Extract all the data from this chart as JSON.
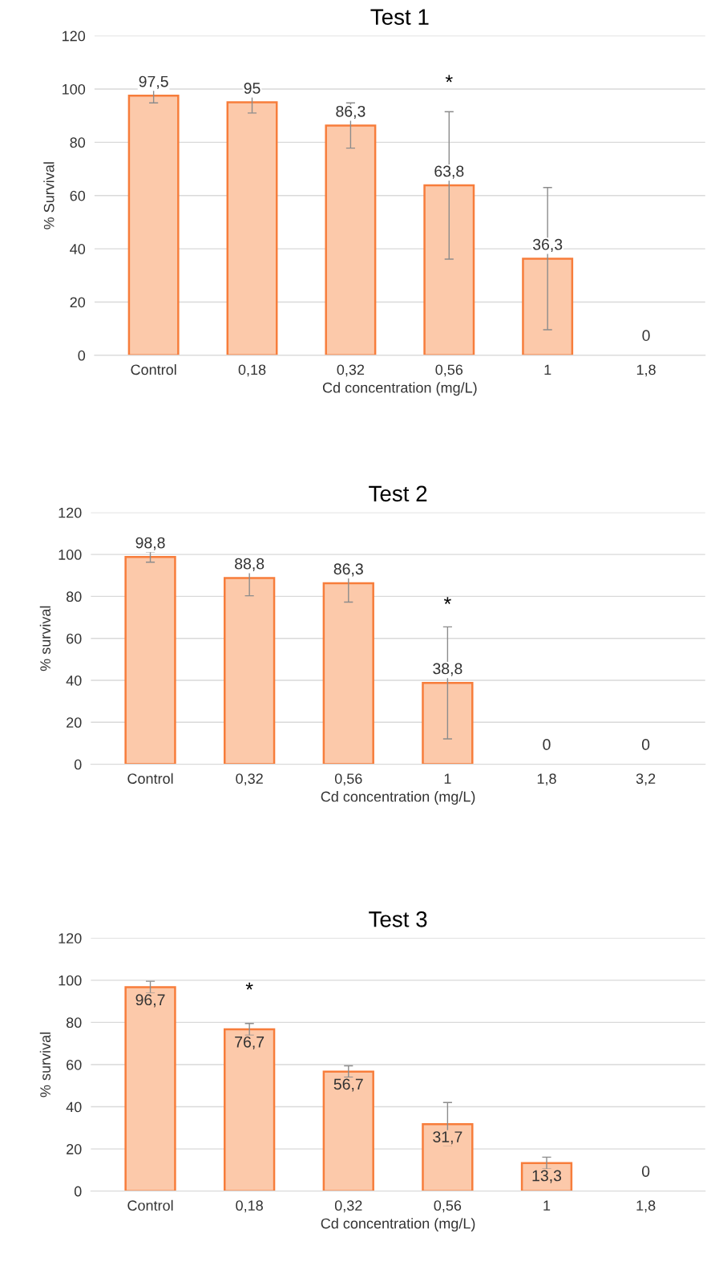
{
  "chart_data": [
    {
      "type": "bar",
      "title": "Test 1",
      "xlabel": "Cd concentration (mg/L)",
      "ylabel": "% Survival",
      "categories": [
        "Control",
        "0,18",
        "0,32",
        "0,56",
        "1",
        "1,8"
      ],
      "values": [
        97.5,
        95,
        86.3,
        63.8,
        36.3,
        0
      ],
      "errors": [
        2.7,
        4,
        8.5,
        27.7,
        26.7,
        null
      ],
      "value_labels": [
        "97,5",
        "95",
        "86,3",
        "63,8",
        "36,3",
        "0"
      ],
      "data_labels": true,
      "color": "#fcc9aa",
      "ylim": [
        0,
        120
      ],
      "yticks": [
        0,
        20,
        40,
        60,
        80,
        100,
        120
      ],
      "grid": "y",
      "annotations": [
        "*"
      ]
    },
    {
      "type": "bar",
      "title": "Test 2",
      "xlabel": "Cd concentration (mg/L)",
      "ylabel": "% survival",
      "categories": [
        "Control",
        "0,32",
        "0,56",
        "1",
        "1,8",
        "3,2"
      ],
      "values": [
        98.8,
        88.8,
        86.3,
        38.8,
        0,
        0
      ],
      "errors": [
        2.5,
        8.5,
        9,
        26.7,
        null,
        null
      ],
      "value_labels": [
        "98,8",
        "88,8",
        "86,3",
        "38,8",
        "0",
        "0"
      ],
      "data_labels": true,
      "color": "#fcc9aa",
      "ylim": [
        0,
        120
      ],
      "yticks": [
        0,
        20,
        40,
        60,
        80,
        100,
        120
      ],
      "grid": "y",
      "annotations": [
        "*"
      ]
    },
    {
      "type": "bar",
      "title": "Test 3",
      "xlabel": "Cd concentration (mg/L)",
      "ylabel": "% survival",
      "categories": [
        "Control",
        "0,18",
        "0,32",
        "0,56",
        "1",
        "1,8"
      ],
      "values": [
        96.7,
        76.7,
        56.7,
        31.7,
        13.3,
        0
      ],
      "errors": [
        2.8,
        2.8,
        2.7,
        10.3,
        2.8,
        null
      ],
      "value_labels": [
        "96,7",
        "76,7",
        "56,7",
        "31,7",
        "13,3",
        "0"
      ],
      "data_labels": true,
      "color": "#fcc9aa",
      "ylim": [
        0,
        120
      ],
      "yticks": [
        0,
        20,
        40,
        60,
        80,
        100,
        120
      ],
      "grid": "y",
      "annotations": [
        "*"
      ]
    }
  ]
}
